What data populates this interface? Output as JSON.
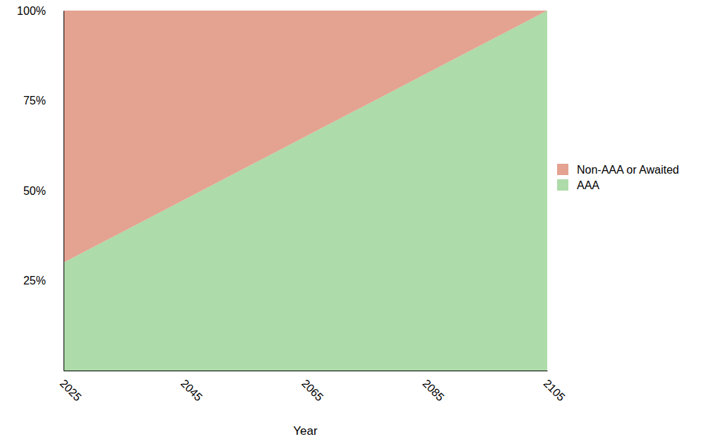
{
  "chart_data": {
    "type": "area",
    "stacked": true,
    "legend": "right",
    "grid": false,
    "x_label": "Year",
    "x": [
      2025,
      2045,
      2065,
      2085,
      2105
    ],
    "xlim": [
      2025,
      2105
    ],
    "xticks": [
      2025,
      2045,
      2065,
      2085,
      2105
    ],
    "ylim": [
      0,
      100
    ],
    "yticks": [
      {
        "value": 25,
        "label": "25%"
      },
      {
        "value": 50,
        "label": "50%"
      },
      {
        "value": 75,
        "label": "75%"
      },
      {
        "value": 100,
        "label": "100%"
      }
    ],
    "series": [
      {
        "name": "AAA",
        "color": "#addba9",
        "values": [
          30,
          47.5,
          65,
          82.5,
          100
        ]
      },
      {
        "name": "Non-AAA or Awaited",
        "color": "#e4a291",
        "values": [
          70,
          52.5,
          35,
          17.5,
          0
        ]
      }
    ]
  }
}
